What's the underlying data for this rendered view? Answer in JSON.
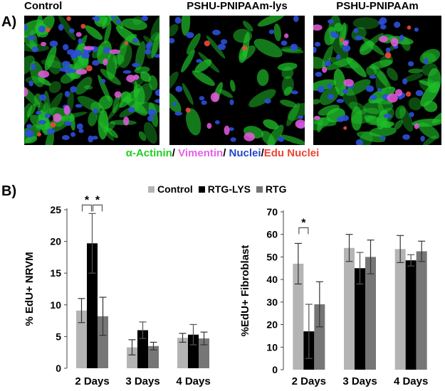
{
  "panel_a": {
    "letter": "A)",
    "images": [
      {
        "title": "Control"
      },
      {
        "title": "PSHU-PNIPAAm-lys"
      },
      {
        "title": "PSHU-PNIPAAm"
      }
    ],
    "stain_legend": [
      {
        "text": "α-Actinin",
        "color": "#22cc22"
      },
      {
        "text": "/ ",
        "color": "#000000"
      },
      {
        "text": "Vimentin",
        "color": "#e860e8"
      },
      {
        "text": "/ ",
        "color": "#000000"
      },
      {
        "text": "Nuclei",
        "color": "#2244cc"
      },
      {
        "text": "/",
        "color": "#000000"
      },
      {
        "text": "Edu Nuclei",
        "color": "#ee4433"
      }
    ]
  },
  "panel_b": {
    "letter": "B)",
    "legend": [
      {
        "name": "Control",
        "color": "#b4b4b4"
      },
      {
        "name": "RTG-LYS",
        "color": "#000000"
      },
      {
        "name": "RTG",
        "color": "#767676"
      }
    ]
  },
  "chart_data": [
    {
      "type": "bar",
      "ylabel": "% EdU+ NRVM",
      "categories": [
        "2 Days",
        "3 Days",
        "4 Days"
      ],
      "ylim": [
        0,
        25
      ],
      "yticks": [
        0,
        5,
        10,
        15,
        20,
        25
      ],
      "series": [
        {
          "name": "Control",
          "color": "#b4b4b4",
          "values": [
            9.1,
            3.3,
            4.8
          ],
          "errors": [
            1.9,
            1.2,
            0.7
          ]
        },
        {
          "name": "RTG-LYS",
          "color": "#000000",
          "values": [
            19.7,
            6.0,
            5.3
          ],
          "errors": [
            4.7,
            1.3,
            1.6
          ]
        },
        {
          "name": "RTG",
          "color": "#767676",
          "values": [
            8.2,
            3.5,
            4.7
          ],
          "errors": [
            3.0,
            0.6,
            1.0
          ]
        }
      ],
      "significance": [
        {
          "category": 0,
          "from": 0,
          "to": 1,
          "label": "*"
        },
        {
          "category": 0,
          "from": 1,
          "to": 2,
          "label": "*"
        }
      ]
    },
    {
      "type": "bar",
      "ylabel": "%EdU+ Fibroblast",
      "categories": [
        "2 Days",
        "3 Days",
        "4 Days"
      ],
      "ylim": [
        0,
        70
      ],
      "yticks": [
        0,
        10,
        20,
        30,
        40,
        50,
        60,
        70
      ],
      "series": [
        {
          "name": "Control",
          "color": "#b4b4b4",
          "values": [
            47,
            54,
            53.5
          ],
          "errors": [
            9,
            6,
            6
          ]
        },
        {
          "name": "RTG-LYS",
          "color": "#000000",
          "values": [
            17,
            45,
            48.5
          ],
          "errors": [
            12,
            7,
            2.5
          ]
        },
        {
          "name": "RTG",
          "color": "#767676",
          "values": [
            29,
            50,
            52.5
          ],
          "errors": [
            10,
            7.5,
            4.5
          ]
        }
      ],
      "significance": [
        {
          "category": 0,
          "from": 0,
          "to": 1,
          "label": "*"
        }
      ]
    }
  ]
}
